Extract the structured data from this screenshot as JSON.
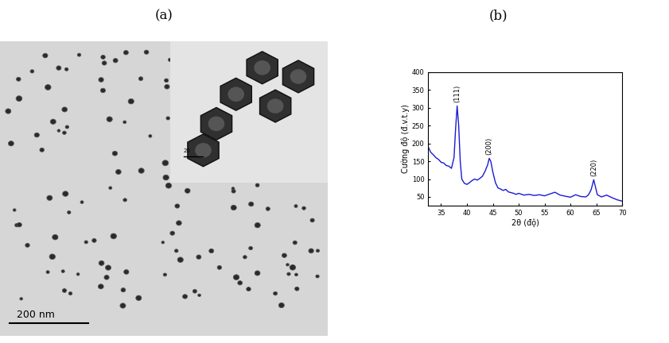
{
  "panel_labels": [
    "(a)",
    "(b)"
  ],
  "micrograph": {
    "scale_bar": "200 nm",
    "inset_scale_bar": "20"
  },
  "chart_data": {
    "type": "line",
    "x_label": "2θ (độ)",
    "y_label": "Cường độ (đ.v.t.y)",
    "x": [
      32.5,
      33,
      33.5,
      34,
      34.5,
      35,
      35.5,
      36,
      36.5,
      37,
      37.5,
      37.8,
      38.1,
      38.4,
      38.7,
      39,
      39.5,
      40,
      40.5,
      41,
      41.5,
      42,
      42.5,
      43,
      43.5,
      44,
      44.3,
      44.6,
      45,
      45.5,
      46,
      46.5,
      47,
      47.5,
      48,
      48.5,
      49,
      49.5,
      50,
      51,
      52,
      53,
      54,
      55,
      56,
      57,
      58,
      59,
      60,
      61,
      62,
      63,
      63.5,
      64,
      64.5,
      64.8,
      65.2,
      66,
      67,
      68,
      69,
      70
    ],
    "values": [
      190,
      175,
      168,
      160,
      155,
      147,
      145,
      138,
      136,
      130,
      160,
      240,
      305,
      250,
      150,
      100,
      88,
      85,
      90,
      96,
      100,
      97,
      102,
      108,
      122,
      140,
      158,
      150,
      120,
      90,
      75,
      72,
      68,
      71,
      64,
      62,
      60,
      57,
      60,
      55,
      57,
      54,
      56,
      53,
      58,
      63,
      55,
      52,
      49,
      56,
      51,
      50,
      56,
      70,
      98,
      80,
      56,
      50,
      55,
      48,
      42,
      38
    ],
    "color": "#1a1ad6",
    "xlim": [
      32.5,
      70
    ],
    "xticks": [
      35,
      40,
      45,
      50,
      55,
      60,
      65,
      70
    ],
    "ylim": [
      25,
      400
    ],
    "yticks": [
      50,
      100,
      150,
      200,
      250,
      300,
      350,
      400
    ],
    "annotations": [
      {
        "text": "(111)",
        "x": 38.1
      },
      {
        "text": "(200)",
        "x": 44.3
      },
      {
        "text": "(220)",
        "x": 64.5
      }
    ]
  }
}
